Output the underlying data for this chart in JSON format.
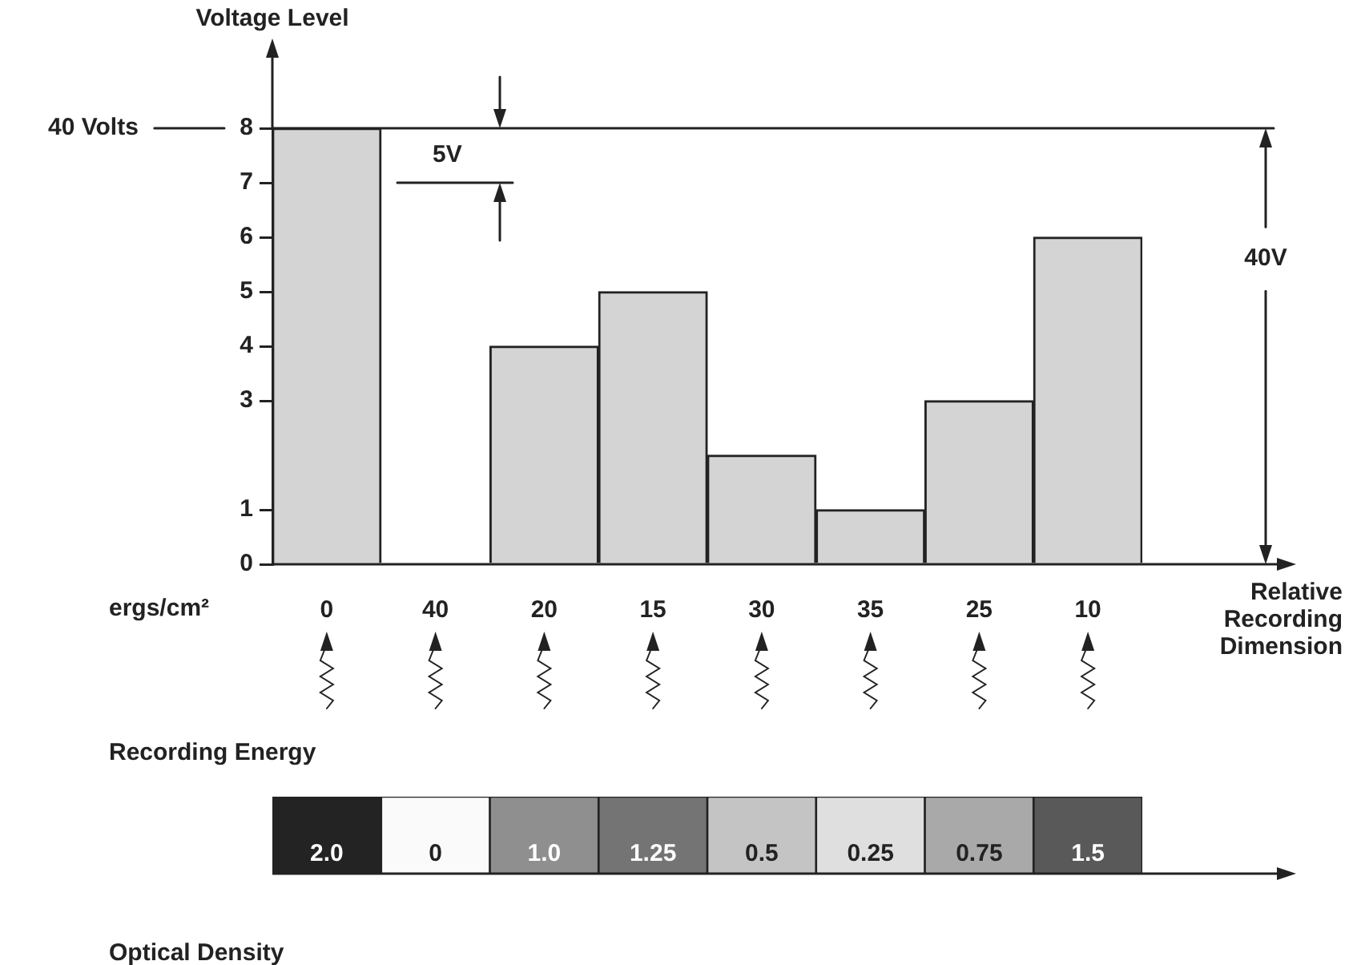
{
  "chart_data": [
    {
      "type": "bar",
      "ylabel": "Voltage Level",
      "xlabel": "Relative Recording Dimension",
      "categories": [
        "0",
        "40",
        "20",
        "15",
        "30",
        "35",
        "25",
        "10"
      ],
      "values": [
        8,
        0,
        4,
        5,
        2,
        1,
        3,
        6
      ],
      "color": "#d4d4d4",
      "ylim": [
        0,
        8
      ],
      "yticks": [
        0,
        1,
        3,
        4,
        5,
        6,
        7,
        8
      ],
      "ref_lines": [
        {
          "axis": "y",
          "value": 8
        },
        {
          "axis": "y",
          "value": 7
        }
      ],
      "annotations": [
        "40 Volts",
        "5V",
        "40V",
        "ergs/cm²",
        "Recording Energy"
      ]
    },
    {
      "type": "heatmap",
      "xlabel": "Optical Density",
      "categories": [
        null,
        null,
        null,
        null,
        null,
        null,
        null,
        null
      ],
      "y_categories": [
        null
      ],
      "cells": [
        [
          2.0,
          0,
          1.0,
          1.25,
          0.5,
          0.25,
          0.75,
          1.5
        ]
      ],
      "cell_labels": [
        [
          "2.0",
          "0",
          "1.0",
          "1.25",
          "0.5",
          "0.25",
          "0.75",
          "1.5"
        ]
      ]
    }
  ]
}
